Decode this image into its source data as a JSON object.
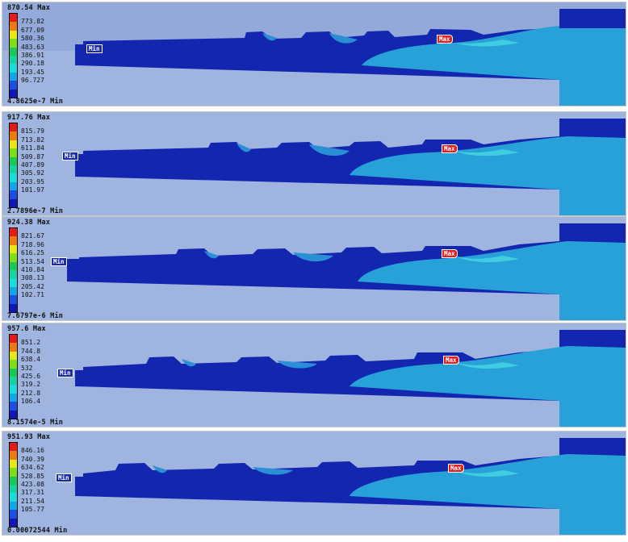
{
  "colors": [
    "#e61919",
    "#f07a12",
    "#e8e814",
    "#7ee014",
    "#17c957",
    "#16d4a0",
    "#19dcdc",
    "#11a6e8",
    "#1a4fe0",
    "#1018b4"
  ],
  "labels": {
    "min": "Min",
    "max": "Max"
  },
  "panels": [
    {
      "max_label": "870.54 Max",
      "min_label": "4.8625e-7 Min",
      "ticks": [
        "773.82",
        "677.09",
        "580.36",
        "483.63",
        "386.91",
        "290.18",
        "193.45",
        "96.727"
      ]
    },
    {
      "max_label": "917.76 Max",
      "min_label": "2.7896e-7 Min",
      "ticks": [
        "815.79",
        "713.82",
        "611.84",
        "509.87",
        "407.89",
        "305.92",
        "203.95",
        "101.97"
      ]
    },
    {
      "max_label": "924.38 Max",
      "min_label": "7.6797e-6 Min",
      "ticks": [
        "821.67",
        "718.96",
        "616.25",
        "513.54",
        "410.84",
        "308.13",
        "205.42",
        "102.71"
      ]
    },
    {
      "max_label": "957.6 Max",
      "min_label": "8.1574e-5 Min",
      "ticks": [
        "851.2",
        "744.8",
        "638.4",
        "532",
        "425.6",
        "319.2",
        "212.8",
        "106.4"
      ]
    },
    {
      "max_label": "951.93 Max",
      "min_label": "0.00072544 Min",
      "ticks": [
        "846.16",
        "740.39",
        "634.62",
        "528.85",
        "423.08",
        "317.31",
        "211.54",
        "105.77"
      ]
    }
  ]
}
